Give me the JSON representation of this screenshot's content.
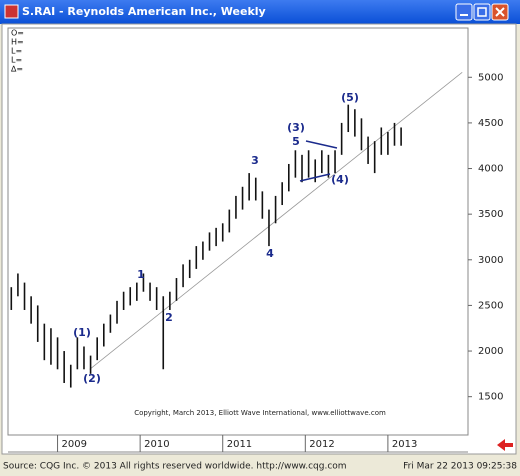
{
  "chart_data": {
    "type": "range-bar",
    "title": "S.RAI - Reynolds American Inc., Weekly",
    "readouts": [
      "O=",
      "H=",
      "L=",
      "L=",
      "∆="
    ],
    "x": [
      2008.44,
      2008.52,
      2008.6,
      2008.68,
      2008.76,
      2008.84,
      2008.92,
      2009.0,
      2009.08,
      2009.16,
      2009.24,
      2009.32,
      2009.4,
      2009.48,
      2009.56,
      2009.64,
      2009.72,
      2009.8,
      2009.88,
      2009.96,
      2010.04,
      2010.12,
      2010.2,
      2010.28,
      2010.36,
      2010.44,
      2010.52,
      2010.6,
      2010.68,
      2010.76,
      2010.84,
      2010.92,
      2011.0,
      2011.08,
      2011.16,
      2011.24,
      2011.32,
      2011.4,
      2011.48,
      2011.56,
      2011.64,
      2011.72,
      2011.8,
      2011.88,
      2011.96,
      2012.04,
      2012.12,
      2012.2,
      2012.28,
      2012.36,
      2012.44,
      2012.52,
      2012.6,
      2012.68,
      2012.76,
      2012.84,
      2012.92,
      2013.0,
      2013.08,
      2013.16
    ],
    "high": [
      2700,
      2850,
      2750,
      2600,
      2500,
      2300,
      2250,
      2150,
      2000,
      1850,
      2150,
      2050,
      1950,
      2150,
      2300,
      2400,
      2550,
      2650,
      2700,
      2750,
      2850,
      2750,
      2700,
      2600,
      2650,
      2800,
      2950,
      3000,
      3150,
      3200,
      3300,
      3350,
      3400,
      3550,
      3700,
      3800,
      3950,
      3900,
      3750,
      3550,
      3700,
      3850,
      4050,
      4200,
      4150,
      4200,
      4100,
      4200,
      4150,
      4200,
      4500,
      4700,
      4650,
      4550,
      4350,
      4300,
      4450,
      4400,
      4500,
      4450
    ],
    "low": [
      2450,
      2600,
      2450,
      2300,
      2100,
      1900,
      1850,
      1800,
      1650,
      1600,
      1800,
      1800,
      1750,
      1900,
      2050,
      2200,
      2300,
      2450,
      2500,
      2550,
      2650,
      2550,
      2450,
      1800,
      2450,
      2550,
      2700,
      2800,
      2900,
      3000,
      3100,
      3150,
      3200,
      3300,
      3450,
      3550,
      3650,
      3650,
      3450,
      3150,
      3400,
      3600,
      3750,
      3900,
      3850,
      3900,
      3850,
      3950,
      3900,
      3950,
      4150,
      4400,
      4350,
      4200,
      4050,
      3950,
      4150,
      4150,
      4250,
      4250
    ],
    "color": "#111111",
    "trendline": {
      "x": [
        2009.39,
        2013.9
      ],
      "y": [
        1800,
        5055
      ]
    },
    "annotations": [
      "(1)",
      "(2)",
      "1",
      "2",
      "3",
      "4",
      "(3)",
      "5",
      "(4)",
      "(5)"
    ],
    "copyright": "Copyright, March 2013, Elliott Wave International, www.elliottwave.com",
    "xlim": [
      2008.4,
      2013.97
    ],
    "xticks": [
      2009,
      2010,
      2011,
      2012,
      2013
    ],
    "ylim": [
      1080,
      5540
    ],
    "yticks": [
      1500,
      2000,
      2500,
      3000,
      3500,
      4000,
      4500,
      5000
    ]
  },
  "status": {
    "source": "Source: CQG Inc. © 2013 All rights reserved worldwide. http://www.cqg.com",
    "timestamp": "Fri Mar 22 2013 09:25:38"
  }
}
